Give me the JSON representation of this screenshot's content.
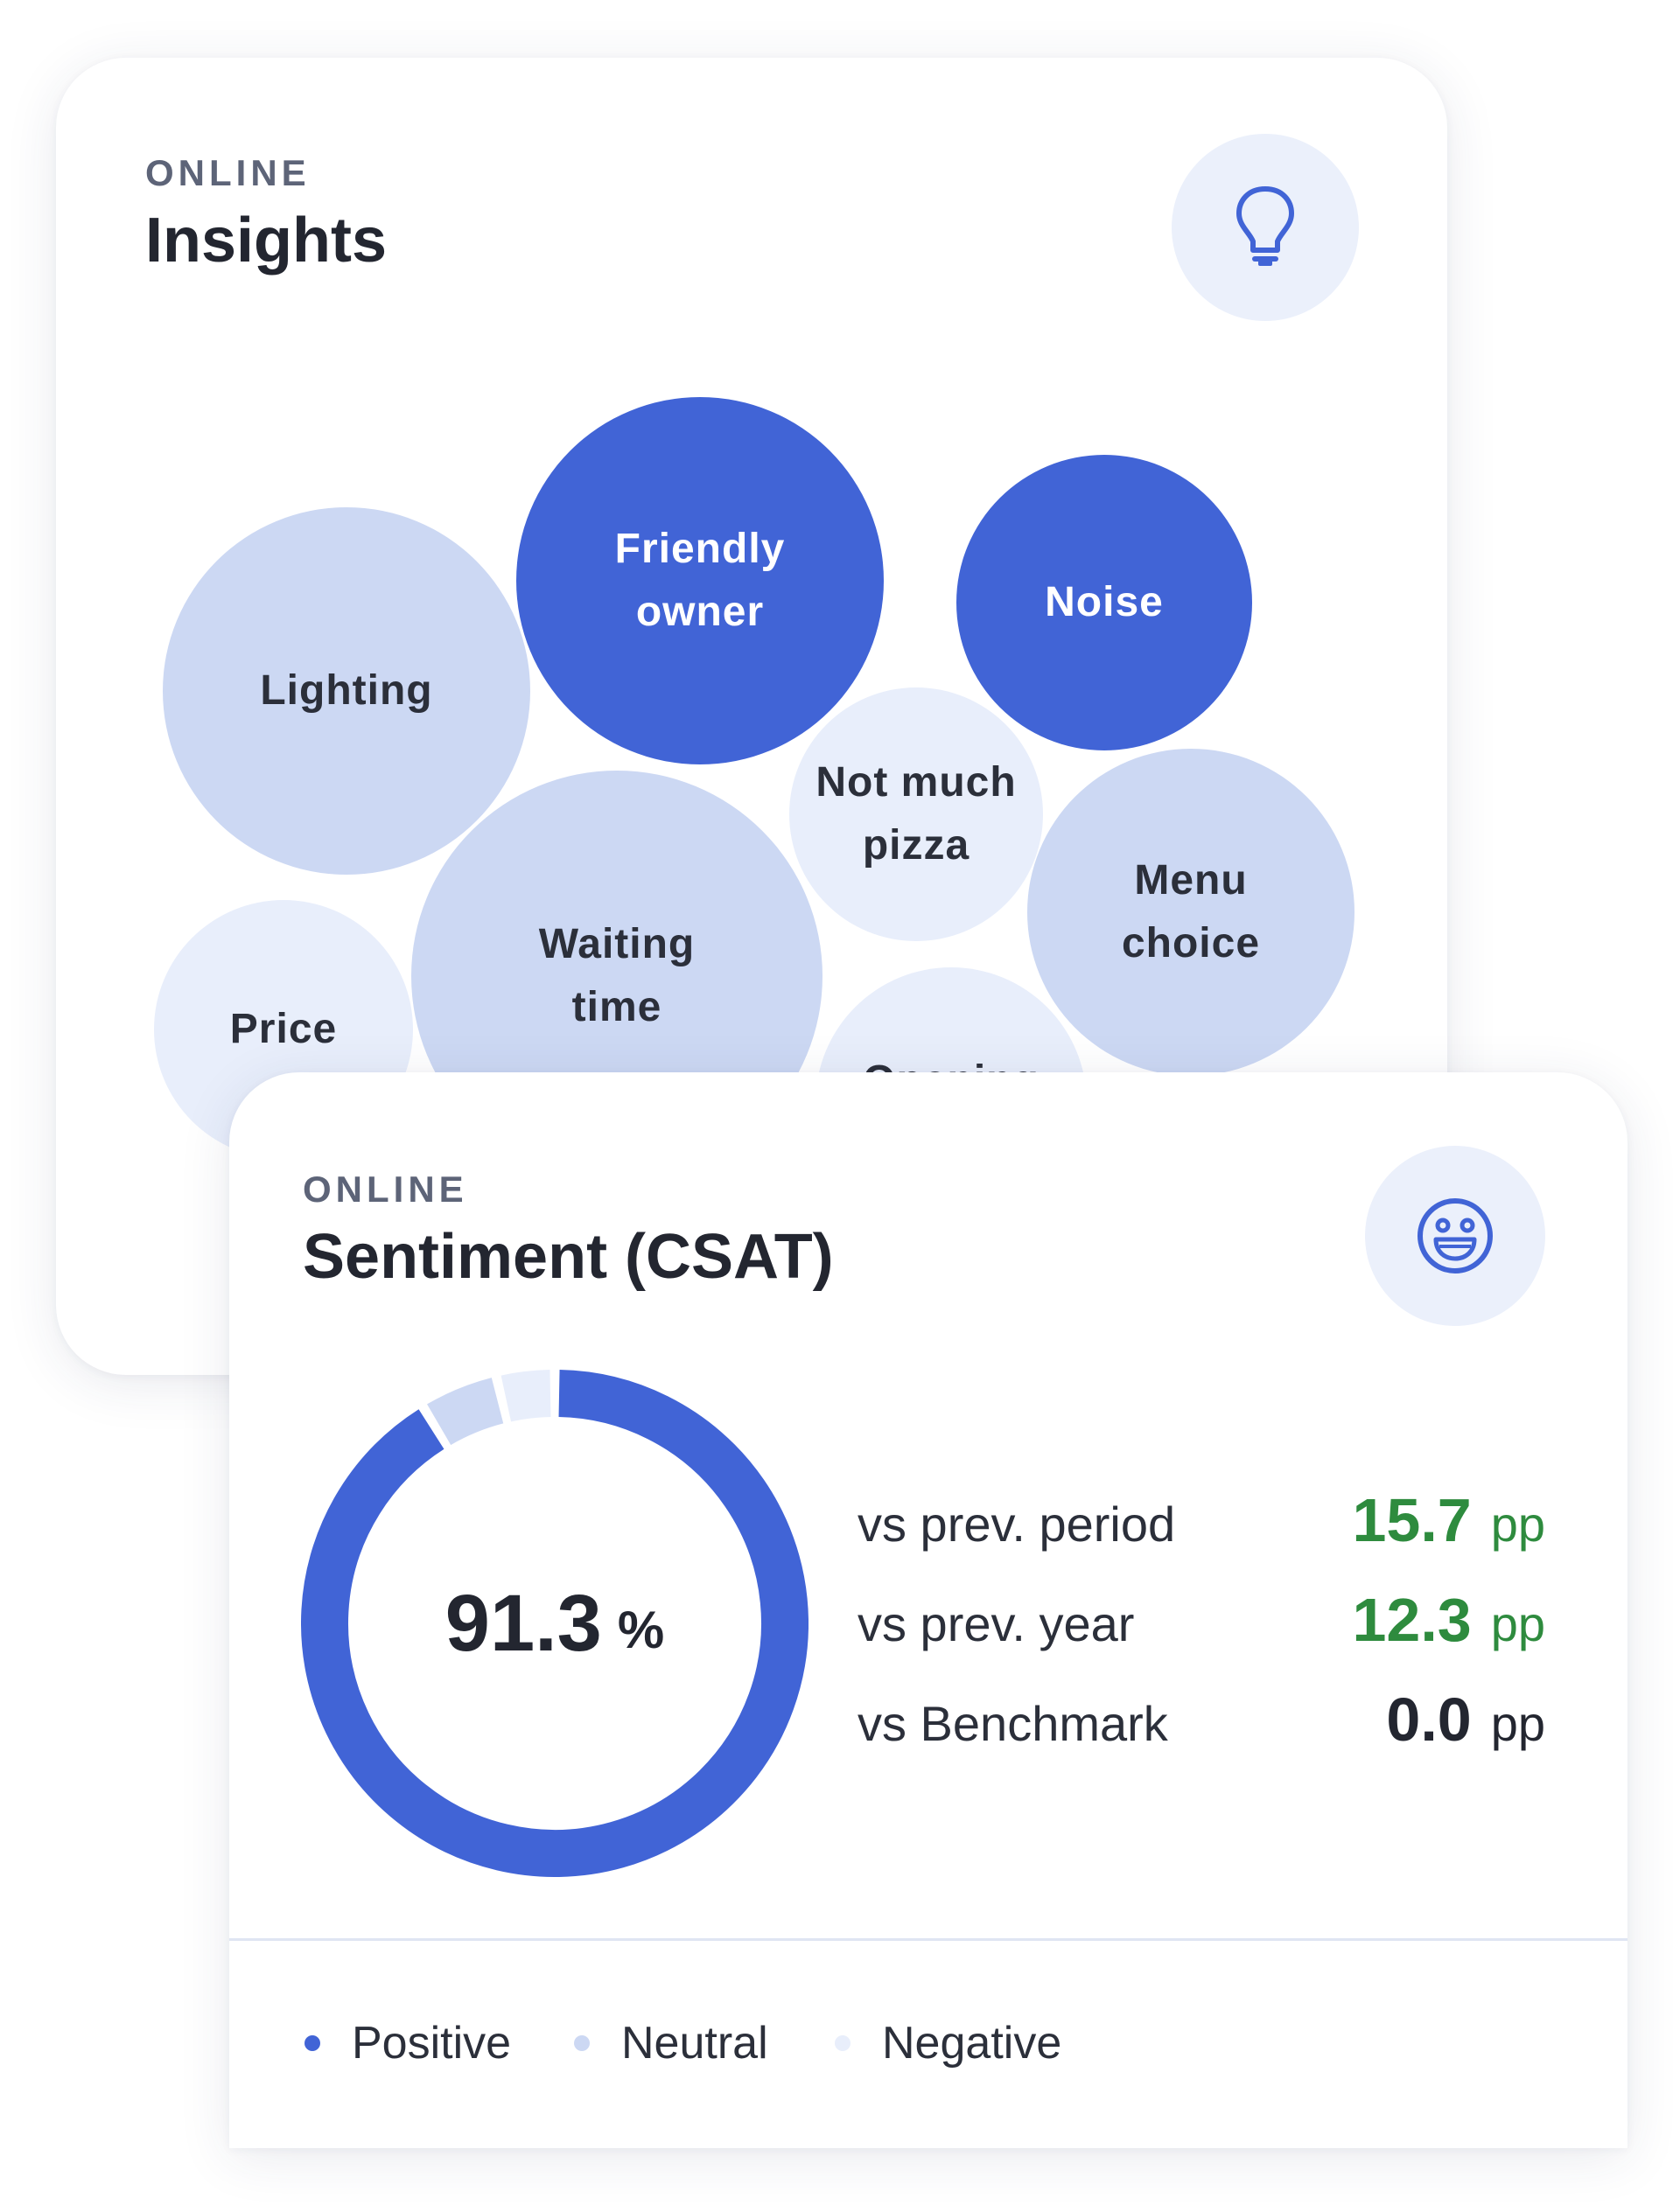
{
  "insights": {
    "eyebrow": "ONLINE",
    "title": "Insights",
    "icon": "lightbulb-icon",
    "bubbles": [
      {
        "label_line1": "Friendly",
        "label_line2": "owner",
        "tone": "dark"
      },
      {
        "label_line1": "Noise",
        "label_line2": "",
        "tone": "dark"
      },
      {
        "label_line1": "Lighting",
        "label_line2": "",
        "tone": "mid"
      },
      {
        "label_line1": "Not much",
        "label_line2": "pizza",
        "tone": "light"
      },
      {
        "label_line1": "Menu",
        "label_line2": "choice",
        "tone": "mid"
      },
      {
        "label_line1": "Waiting",
        "label_line2": "time",
        "tone": "mid"
      },
      {
        "label_line1": "Price",
        "label_line2": "",
        "tone": "light"
      },
      {
        "label_line1": "Opening",
        "label_line2": "",
        "tone": "light"
      }
    ]
  },
  "sentiment": {
    "eyebrow": "ONLINE",
    "title": "Sentiment (CSAT)",
    "icon": "smiley-face-icon",
    "score_value": "91.3",
    "score_unit": "%",
    "comparisons": [
      {
        "label": "vs prev. period",
        "value": "15.7",
        "unit": "pp",
        "color": "#2e8b3e"
      },
      {
        "label": "vs prev. year",
        "value": "12.3",
        "unit": "pp",
        "color": "#2e8b3e"
      },
      {
        "label": "vs Benchmark",
        "value": "0.0",
        "unit": "pp",
        "color": "#232630"
      }
    ],
    "legend": [
      {
        "label": "Positive",
        "color": "#4164d6"
      },
      {
        "label": "Neutral",
        "color": "#ccd8f3"
      },
      {
        "label": "Negative",
        "color": "#e8eefb"
      }
    ]
  },
  "chart_data": {
    "type": "pie",
    "categories": [
      "Positive",
      "Neutral",
      "Negative"
    ],
    "values": [
      91.3,
      5.0,
      3.7
    ],
    "colors": [
      "#4164d6",
      "#ccd8f3",
      "#e8eefb"
    ],
    "center_label": "91.3 %",
    "legend_position": "bottom"
  }
}
